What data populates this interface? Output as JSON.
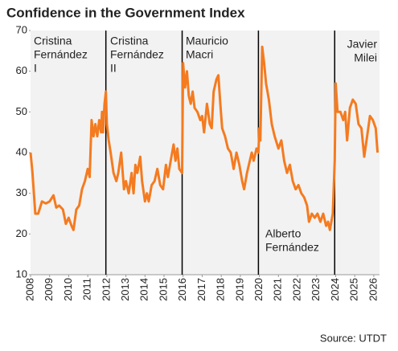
{
  "chart_data": {
    "type": "line",
    "title": "Confidence in the Government Index",
    "source": "Source: UTDT",
    "color": "#f47b20",
    "xlim": [
      2008,
      2026.3
    ],
    "ylim": [
      10,
      70
    ],
    "xticks": [
      2008,
      2009,
      2010,
      2011,
      2012,
      2013,
      2014,
      2015,
      2016,
      2017,
      2018,
      2019,
      2020,
      2021,
      2022,
      2023,
      2024,
      2025,
      2026
    ],
    "yticks": [
      10,
      20,
      30,
      40,
      50,
      60,
      70
    ],
    "grid": false,
    "dividers": [
      2011.95,
      2015.95,
      2019.95,
      2023.95
    ],
    "annotations": [
      {
        "lines": [
          "Cristina",
          "Fernández",
          "I"
        ]
      },
      {
        "lines": [
          "Cristina",
          "Fernández",
          "II"
        ]
      },
      {
        "lines": [
          "Mauricio",
          "Macri"
        ]
      },
      {
        "lines": [
          "Alberto",
          "Fernández"
        ]
      },
      {
        "lines": [
          "Javier",
          "Milei"
        ]
      }
    ],
    "x": [
      2008.0,
      2008.1,
      2008.25,
      2008.4,
      2008.6,
      2008.8,
      2009.0,
      2009.2,
      2009.35,
      2009.5,
      2009.7,
      2009.85,
      2010.0,
      2010.15,
      2010.25,
      2010.4,
      2010.55,
      2010.7,
      2010.85,
      2011.0,
      2011.1,
      2011.2,
      2011.3,
      2011.4,
      2011.5,
      2011.6,
      2011.7,
      2011.75,
      2011.8,
      2011.88,
      2011.95,
      2012.0,
      2012.1,
      2012.2,
      2012.35,
      2012.5,
      2012.6,
      2012.75,
      2012.9,
      2013.0,
      2013.15,
      2013.3,
      2013.4,
      2013.5,
      2013.6,
      2013.75,
      2013.85,
      2014.0,
      2014.1,
      2014.2,
      2014.35,
      2014.5,
      2014.65,
      2014.8,
      2014.95,
      2015.1,
      2015.2,
      2015.35,
      2015.5,
      2015.6,
      2015.7,
      2015.8,
      2015.95,
      2016.0,
      2016.1,
      2016.2,
      2016.3,
      2016.4,
      2016.5,
      2016.6,
      2016.75,
      2016.9,
      2017.0,
      2017.1,
      2017.25,
      2017.4,
      2017.5,
      2017.6,
      2017.75,
      2017.85,
      2017.95,
      2018.05,
      2018.2,
      2018.35,
      2018.5,
      2018.65,
      2018.8,
      2018.95,
      2019.1,
      2019.2,
      2019.35,
      2019.5,
      2019.6,
      2019.7,
      2019.85,
      2019.95,
      2020.0,
      2020.05,
      2020.15,
      2020.25,
      2020.35,
      2020.5,
      2020.65,
      2020.8,
      2021.0,
      2021.15,
      2021.3,
      2021.45,
      2021.6,
      2021.75,
      2021.9,
      2022.05,
      2022.2,
      2022.35,
      2022.5,
      2022.6,
      2022.75,
      2022.9,
      2023.05,
      2023.2,
      2023.35,
      2023.5,
      2023.6,
      2023.7,
      2023.85,
      2023.95,
      2024.0,
      2024.1,
      2024.25,
      2024.4,
      2024.5,
      2024.6,
      2024.75,
      2024.9,
      2025.05,
      2025.2,
      2025.35,
      2025.5,
      2025.65,
      2025.8,
      2025.95,
      2026.1,
      2026.2
    ],
    "values": [
      40,
      35,
      25,
      25,
      28,
      27.5,
      28,
      29.5,
      26.5,
      27,
      26,
      22.5,
      24,
      22,
      21,
      26,
      27,
      31,
      33,
      36,
      34,
      48,
      44,
      47,
      44,
      48,
      45,
      50,
      45,
      52,
      55,
      47,
      43,
      40,
      35,
      33,
      35,
      40,
      31,
      33,
      30,
      35,
      30,
      37,
      35,
      39,
      33,
      28,
      30,
      28,
      32,
      33,
      36,
      32,
      31,
      37,
      34,
      38,
      42,
      38,
      41,
      36,
      35,
      62,
      56,
      60,
      54,
      52,
      55,
      51,
      50,
      48,
      49,
      45,
      52,
      47,
      46,
      55,
      58,
      59,
      52,
      46,
      44,
      41,
      40,
      36,
      40,
      37,
      33,
      31,
      35,
      38,
      40,
      38,
      41,
      40,
      46,
      43,
      66,
      62,
      57,
      53,
      47,
      44,
      41,
      43,
      38,
      35,
      37,
      33,
      31,
      32,
      30,
      29,
      27,
      23,
      25,
      24,
      25,
      23,
      25,
      22,
      23,
      21,
      25,
      38,
      57,
      50,
      50,
      48,
      50,
      43,
      51,
      53,
      52,
      47,
      46,
      39,
      44,
      49,
      48,
      46,
      40
    ]
  }
}
